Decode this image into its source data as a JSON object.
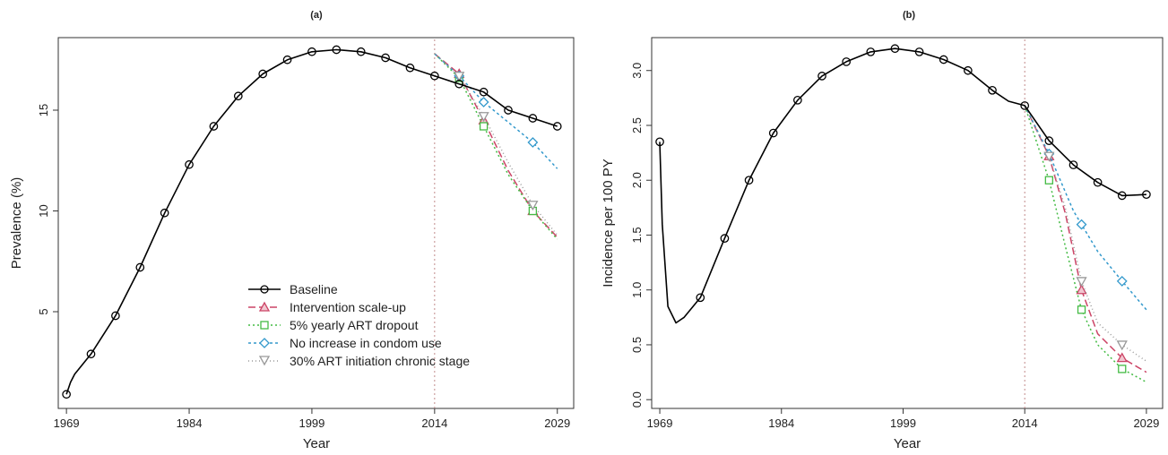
{
  "chart_data": [
    {
      "type": "line",
      "title": "(a)",
      "xlabel": "Year",
      "ylabel": "Prevalence (%)",
      "xlim": [
        1968,
        2031
      ],
      "ylim": [
        0.2,
        18.6
      ],
      "xticks": [
        1969,
        1984,
        1999,
        2014,
        2029
      ],
      "yticks": [
        5,
        10,
        15
      ],
      "vline": 2014,
      "legend_position": "bottom-right",
      "series": [
        {
          "name": "Baseline",
          "color": "#000000",
          "dash": "",
          "marker": "circle",
          "x": [
            1969,
            1969.5,
            1970,
            1972,
            1975,
            1978,
            1981,
            1984,
            1987,
            1990,
            1993,
            1996,
            1999,
            2002,
            2005,
            2008,
            2011,
            2014,
            2017,
            2020,
            2023,
            2026,
            2029
          ],
          "y": [
            0.9,
            1.5,
            1.9,
            2.9,
            4.8,
            7.2,
            9.9,
            12.3,
            14.2,
            15.7,
            16.8,
            17.5,
            17.9,
            18.0,
            17.9,
            17.6,
            17.1,
            16.7,
            16.3,
            15.9,
            15.0,
            14.6,
            14.2
          ],
          "marker_x": [
            1969,
            1972,
            1975,
            1978,
            1981,
            1984,
            1987,
            1990,
            1993,
            1996,
            1999,
            2002,
            2005,
            2008,
            2011,
            2014,
            2017,
            2020,
            2023,
            2026,
            2029
          ]
        },
        {
          "name": "Intervention scale-up",
          "color": "#cc4466",
          "dash": "8,4",
          "marker": "triangle",
          "x": [
            2014,
            2017,
            2020,
            2023,
            2026,
            2029
          ],
          "y": [
            17.8,
            16.8,
            14.5,
            12.0,
            10.0,
            8.7
          ],
          "marker_x": [
            2017,
            2020,
            2026
          ]
        },
        {
          "name": "5% yearly ART dropout",
          "color": "#44bb44",
          "dash": "2,3",
          "marker": "square",
          "x": [
            2014,
            2017,
            2020,
            2023,
            2026,
            2029
          ],
          "y": [
            17.8,
            16.6,
            14.2,
            11.8,
            10.0,
            8.6
          ],
          "marker_x": [
            2017,
            2020,
            2026
          ]
        },
        {
          "name": "No increase in condom use",
          "color": "#3399cc",
          "dash": "3,3",
          "marker": "diamond",
          "x": [
            2014,
            2017,
            2020,
            2023,
            2026,
            2029
          ],
          "y": [
            17.8,
            16.7,
            15.4,
            14.4,
            13.4,
            12.1
          ],
          "marker_x": [
            2017,
            2020,
            2026
          ]
        },
        {
          "name": "30% ART initiation chronic stage",
          "color": "#999999",
          "dash": "1,3",
          "marker": "triangle-down",
          "x": [
            2014,
            2017,
            2020,
            2023,
            2026,
            2029
          ],
          "y": [
            17.8,
            16.7,
            14.7,
            12.4,
            10.3,
            8.8
          ],
          "marker_x": [
            2017,
            2020,
            2026
          ]
        }
      ]
    },
    {
      "type": "line",
      "title": "(b)",
      "xlabel": "Year",
      "ylabel": "Incidence per 100 PY",
      "xlim": [
        1968,
        2031
      ],
      "ylim": [
        -0.08,
        3.3
      ],
      "xticks": [
        1969,
        1984,
        1999,
        2014,
        2029
      ],
      "yticks": [
        0.0,
        0.5,
        1.0,
        1.5,
        2.0,
        2.5,
        3.0
      ],
      "ytick_labels": [
        "0.0",
        "0.5",
        "1.0",
        "1.5",
        "2.0",
        "2.5",
        "3.0"
      ],
      "vline": 2014,
      "legend_position": "none",
      "series": [
        {
          "name": "Baseline",
          "color": "#000000",
          "dash": "",
          "marker": "circle",
          "x": [
            1969,
            1969.3,
            1970,
            1971,
            1972,
            1974,
            1977,
            1980,
            1983,
            1986,
            1989,
            1992,
            1995,
            1998,
            2001,
            2004,
            2007,
            2010,
            2012,
            2014,
            2017,
            2020,
            2023,
            2026,
            2029
          ],
          "y": [
            2.35,
            1.6,
            0.85,
            0.7,
            0.75,
            0.93,
            1.47,
            2.0,
            2.43,
            2.73,
            2.95,
            3.08,
            3.17,
            3.2,
            3.17,
            3.1,
            3.0,
            2.82,
            2.72,
            2.68,
            2.36,
            2.14,
            1.98,
            1.86,
            1.87
          ],
          "marker_x": [
            1969,
            1974,
            1977,
            1980,
            1983,
            1986,
            1989,
            1992,
            1995,
            1998,
            2001,
            2004,
            2007,
            2010,
            2014,
            2017,
            2020,
            2023,
            2026,
            2029
          ]
        },
        {
          "name": "Intervention scale-up",
          "color": "#cc4466",
          "dash": "8,4",
          "marker": "triangle",
          "x": [
            2014,
            2017,
            2019,
            2021,
            2023,
            2026,
            2029
          ],
          "y": [
            2.68,
            2.22,
            1.7,
            1.0,
            0.6,
            0.38,
            0.25
          ],
          "marker_x": [
            2017,
            2021,
            2026
          ]
        },
        {
          "name": "5% yearly ART dropout",
          "color": "#44bb44",
          "dash": "2,3",
          "marker": "square",
          "x": [
            2014,
            2017,
            2019,
            2021,
            2023,
            2026,
            2029
          ],
          "y": [
            2.68,
            2.0,
            1.4,
            0.82,
            0.5,
            0.28,
            0.16
          ],
          "marker_x": [
            2017,
            2021,
            2026
          ]
        },
        {
          "name": "No increase in condom use",
          "color": "#3399cc",
          "dash": "3,3",
          "marker": "diamond",
          "x": [
            2014,
            2017,
            2020,
            2023,
            2026,
            2029
          ],
          "y": [
            2.68,
            2.24,
            1.72,
            1.35,
            1.08,
            0.82
          ],
          "marker_x": [
            2017,
            2021,
            2026
          ]
        },
        {
          "name": "30% ART initiation chronic stage",
          "color": "#999999",
          "dash": "1,3",
          "marker": "triangle-down",
          "x": [
            2014,
            2017,
            2019,
            2021,
            2023,
            2026,
            2029
          ],
          "y": [
            2.68,
            2.22,
            1.75,
            1.08,
            0.7,
            0.5,
            0.35
          ],
          "marker_x": [
            2017,
            2021,
            2026
          ]
        }
      ]
    }
  ]
}
